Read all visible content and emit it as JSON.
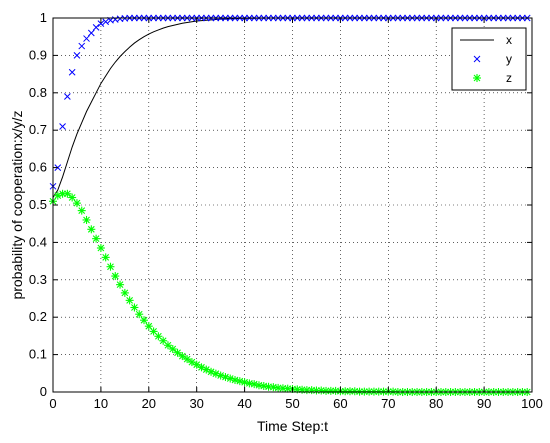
{
  "chart_data": {
    "type": "line",
    "xlabel": "Time Step:t",
    "ylabel": "probability of cooperation:x/y/z",
    "xlim": [
      0,
      100
    ],
    "ylim": [
      0,
      1
    ],
    "xticks": [
      0,
      10,
      20,
      30,
      40,
      50,
      60,
      70,
      80,
      90,
      100
    ],
    "yticks": [
      0,
      0.1,
      0.2,
      0.3,
      0.4,
      0.5,
      0.6,
      0.7,
      0.8,
      0.9,
      1
    ],
    "xtick_labels": [
      "0",
      "10",
      "20",
      "30",
      "40",
      "50",
      "60",
      "70",
      "80",
      "90",
      "100"
    ],
    "ytick_labels": [
      "0",
      "0.1",
      "0.2",
      "0.3",
      "0.4",
      "0.5",
      "0.6",
      "0.7",
      "0.8",
      "0.9",
      "1"
    ],
    "grid": true,
    "grid_style": "dotted",
    "legend_position": "top-right",
    "series": [
      {
        "name": "x",
        "style": "line",
        "color": "#000000",
        "x": [
          0,
          1,
          2,
          3,
          4,
          5,
          6,
          7,
          8,
          9,
          10,
          11,
          12,
          13,
          14,
          15,
          16,
          17,
          18,
          19,
          20,
          21,
          22,
          23,
          24,
          25,
          26,
          27,
          28,
          29,
          30,
          31,
          32,
          33,
          34,
          35,
          36,
          37,
          38,
          39,
          40,
          45,
          50,
          55,
          60,
          65,
          70,
          75,
          80,
          85,
          90,
          95,
          99
        ],
        "y": [
          0.52,
          0.54,
          0.575,
          0.615,
          0.655,
          0.69,
          0.72,
          0.75,
          0.775,
          0.8,
          0.825,
          0.845,
          0.865,
          0.882,
          0.897,
          0.91,
          0.922,
          0.933,
          0.942,
          0.95,
          0.957,
          0.963,
          0.968,
          0.973,
          0.977,
          0.98,
          0.983,
          0.986,
          0.988,
          0.99,
          0.992,
          0.993,
          0.994,
          0.995,
          0.996,
          0.997,
          0.997,
          0.998,
          0.998,
          0.999,
          0.999,
          1,
          1,
          1,
          1,
          1,
          1,
          1,
          1,
          1,
          1,
          1,
          1
        ]
      },
      {
        "name": "y",
        "style": "marker-x",
        "color": "#0000ff",
        "x": [
          0,
          1,
          2,
          3,
          4,
          5,
          6,
          7,
          8,
          9,
          10,
          11,
          12,
          13,
          14,
          15,
          16,
          17,
          18,
          19,
          20,
          21,
          22,
          23,
          24,
          25,
          26,
          27,
          28,
          29,
          30,
          31,
          32,
          33,
          34,
          35,
          36,
          37,
          38,
          39,
          40,
          41,
          42,
          43,
          44,
          45,
          46,
          47,
          48,
          49,
          50,
          51,
          52,
          53,
          54,
          55,
          56,
          57,
          58,
          59,
          60,
          61,
          62,
          63,
          64,
          65,
          66,
          67,
          68,
          69,
          70,
          71,
          72,
          73,
          74,
          75,
          76,
          77,
          78,
          79,
          80,
          81,
          82,
          83,
          84,
          85,
          86,
          87,
          88,
          89,
          90,
          91,
          92,
          93,
          94,
          95,
          96,
          97,
          98,
          99
        ],
        "y": [
          0.55,
          0.6,
          0.71,
          0.79,
          0.855,
          0.9,
          0.925,
          0.945,
          0.96,
          0.975,
          0.985,
          0.99,
          0.994,
          0.996,
          0.998,
          0.999,
          1,
          1,
          1,
          1,
          1,
          1,
          1,
          1,
          1,
          1,
          1,
          1,
          1,
          1,
          1,
          1,
          1,
          1,
          1,
          1,
          1,
          1,
          1,
          1,
          1,
          1,
          1,
          1,
          1,
          1,
          1,
          1,
          1,
          1,
          1,
          1,
          1,
          1,
          1,
          1,
          1,
          1,
          1,
          1,
          1,
          1,
          1,
          1,
          1,
          1,
          1,
          1,
          1,
          1,
          1,
          1,
          1,
          1,
          1,
          1,
          1,
          1,
          1,
          1,
          1,
          1,
          1,
          1,
          1,
          1,
          1,
          1,
          1,
          1,
          1,
          1,
          1,
          1,
          1,
          1,
          1,
          1,
          1,
          1
        ]
      },
      {
        "name": "z",
        "style": "marker-star",
        "color": "#00ff00",
        "x": [
          0,
          1,
          2,
          3,
          4,
          5,
          6,
          7,
          8,
          9,
          10,
          11,
          12,
          13,
          14,
          15,
          16,
          17,
          18,
          19,
          20,
          21,
          22,
          23,
          24,
          25,
          26,
          27,
          28,
          29,
          30,
          31,
          32,
          33,
          34,
          35,
          36,
          37,
          38,
          39,
          40,
          41,
          42,
          43,
          44,
          45,
          46,
          47,
          48,
          49,
          50,
          51,
          52,
          53,
          54,
          55,
          56,
          57,
          58,
          59,
          60,
          61,
          62,
          63,
          64,
          65,
          66,
          67,
          68,
          69,
          70,
          71,
          72,
          73,
          74,
          75,
          76,
          77,
          78,
          79,
          80,
          81,
          82,
          83,
          84,
          85,
          86,
          87,
          88,
          89,
          90,
          91,
          92,
          93,
          94,
          95,
          96,
          97,
          98,
          99
        ],
        "y": [
          0.51,
          0.525,
          0.53,
          0.53,
          0.52,
          0.505,
          0.485,
          0.46,
          0.435,
          0.41,
          0.385,
          0.36,
          0.335,
          0.31,
          0.287,
          0.265,
          0.245,
          0.226,
          0.208,
          0.192,
          0.176,
          0.162,
          0.149,
          0.137,
          0.125,
          0.115,
          0.105,
          0.096,
          0.088,
          0.08,
          0.073,
          0.066,
          0.06,
          0.054,
          0.049,
          0.044,
          0.04,
          0.036,
          0.032,
          0.029,
          0.026,
          0.023,
          0.021,
          0.018,
          0.016,
          0.014,
          0.013,
          0.011,
          0.01,
          0.009,
          0.008,
          0.007,
          0.006,
          0.005,
          0.005,
          0.004,
          0.004,
          0.003,
          0.003,
          0.003,
          0.002,
          0.002,
          0.002,
          0.002,
          0.001,
          0.001,
          0.001,
          0.001,
          0.001,
          0.001,
          0.001,
          0.001,
          0,
          0,
          0,
          0,
          0,
          0,
          0,
          0,
          0,
          0,
          0,
          0,
          0,
          0,
          0,
          0,
          0,
          0,
          0,
          0,
          0,
          0,
          0,
          0,
          0,
          0,
          0,
          0
        ]
      }
    ]
  }
}
